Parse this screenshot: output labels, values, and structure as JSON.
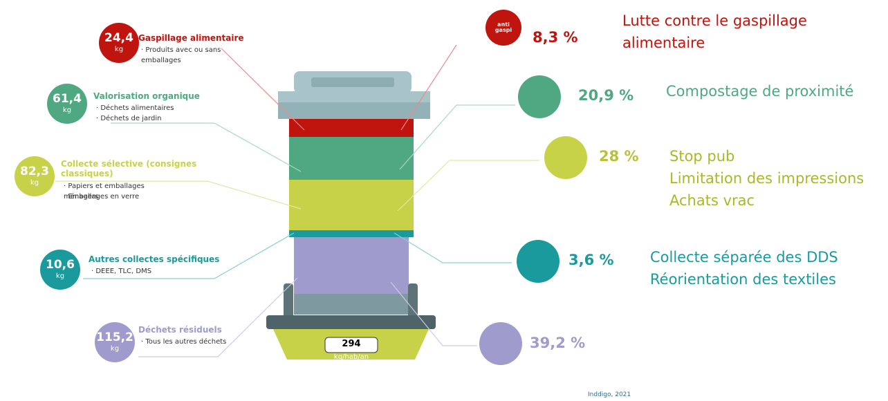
{
  "left": [
    {
      "value": "24,4",
      "unit": "kg",
      "title": "Gaspillage alimentaire",
      "items": [
        "Produits avec ou sans emballages"
      ]
    },
    {
      "value": "61,4",
      "unit": "kg",
      "title": "Valorisation organique",
      "items": [
        "Déchets alimentaires",
        "Déchets de jardin"
      ]
    },
    {
      "value": "82,3",
      "unit": "kg",
      "title": "Collecte sélective (consignes classiques)",
      "items": [
        "Papiers et emballages ménagers",
        "Emballages en verre"
      ]
    },
    {
      "value": "10,6",
      "unit": "kg",
      "title": "Autres collectes spécifiques",
      "items": [
        "DEEE, TLC, DMS"
      ]
    },
    {
      "value": "115,2",
      "unit": "kg",
      "title": "Déchets résiduels",
      "items": [
        "Tous les autres déchets"
      ]
    }
  ],
  "right": [
    {
      "percent": "8,3 %",
      "icon_label": "anti gaspi",
      "actions": [
        "Lutte contre le gaspillage alimentaire"
      ]
    },
    {
      "percent": "20,9 %",
      "actions": [
        "Compostage de proximité"
      ]
    },
    {
      "percent": "28 %",
      "actions": [
        "Stop pub",
        "Limitation des impressions",
        "Achats vrac"
      ]
    },
    {
      "percent": "3,6 %",
      "actions": [
        "Collecte séparée des DDS",
        "Réorientation des textiles"
      ]
    },
    {
      "percent": "39,2 %"
    }
  ],
  "scale": {
    "total": "294",
    "unit": "kg/hab/an"
  },
  "source": "Inddigo, 2021"
}
